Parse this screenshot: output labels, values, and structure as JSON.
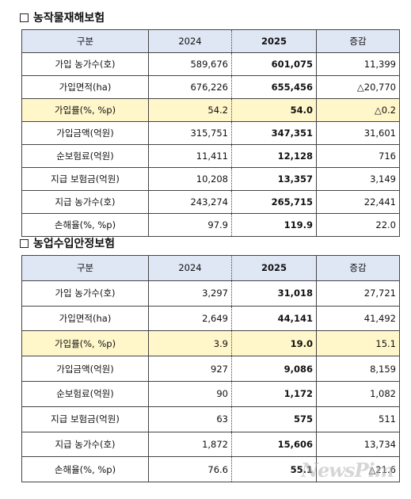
{
  "sections": [
    {
      "title": "농작물재해보험",
      "headers": [
        "구분",
        "2024",
        "2025",
        "증감"
      ],
      "rows": [
        {
          "label": "가입 농가수(호)",
          "y2024": "589,676",
          "y2025": "601,075",
          "diff": "11,399"
        },
        {
          "label": "가입면적(ha)",
          "y2024": "676,226",
          "y2025": "655,456",
          "diff": "△20,770"
        },
        {
          "label": "가입률(%, %p)",
          "y2024": "54.2",
          "y2025": "54.0",
          "diff": "△0.2",
          "highlight": true
        },
        {
          "label": "가입금액(억원)",
          "y2024": "315,751",
          "y2025": "347,351",
          "diff": "31,601"
        },
        {
          "label": "순보험료(억원)",
          "y2024": "11,411",
          "y2025": "12,128",
          "diff": "716"
        },
        {
          "label": "지급 보험금(억원)",
          "y2024": "10,208",
          "y2025": "13,357",
          "diff": "3,149"
        },
        {
          "label": "지급 농가수(호)",
          "y2024": "243,274",
          "y2025": "265,715",
          "diff": "22,441"
        },
        {
          "label": "손해율(%, %p)",
          "y2024": "97.9",
          "y2025": "119.9",
          "diff": "22.0"
        }
      ]
    },
    {
      "title": "농업수입안정보험",
      "headers": [
        "구분",
        "2024",
        "2025",
        "증감"
      ],
      "rows": [
        {
          "label": "가입 농가수(호)",
          "y2024": "3,297",
          "y2025": "31,018",
          "diff": "27,721"
        },
        {
          "label": "가입면적(ha)",
          "y2024": "2,649",
          "y2025": "44,141",
          "diff": "41,492"
        },
        {
          "label": "가입률(%, %p)",
          "y2024": "3.9",
          "y2025": "19.0",
          "diff": "15.1",
          "highlight": true
        },
        {
          "label": "가입금액(억원)",
          "y2024": "927",
          "y2025": "9,086",
          "diff": "8,159"
        },
        {
          "label": "순보험료(억원)",
          "y2024": "90",
          "y2025": "1,172",
          "diff": "1,082"
        },
        {
          "label": "지급 보험금(억원)",
          "y2024": "63",
          "y2025": "575",
          "diff": "511"
        },
        {
          "label": "지급 농가수(호)",
          "y2024": "1,872",
          "y2025": "15,606",
          "diff": "13,734"
        },
        {
          "label": "손해율(%, %p)",
          "y2024": "76.6",
          "y2025": "55.1",
          "diff": "△21.6"
        }
      ]
    }
  ],
  "watermark": "NewsPim"
}
